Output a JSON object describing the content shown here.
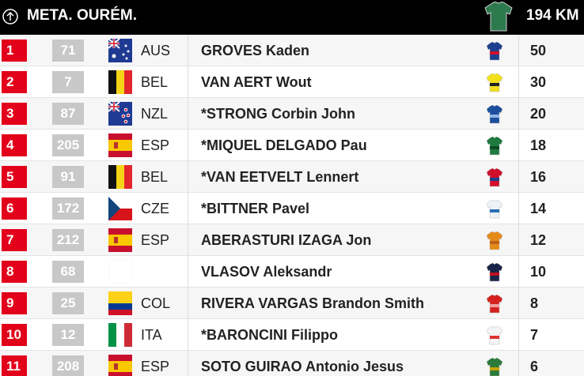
{
  "header": {
    "title": "META. OURÉM.",
    "distance": "194 KM"
  },
  "rows": [
    {
      "rank": "1",
      "bib": "71",
      "country": "AUS",
      "name": "GROVES Kaden",
      "points": "50"
    },
    {
      "rank": "2",
      "bib": "7",
      "country": "BEL",
      "name": "VAN AERT Wout",
      "points": "30"
    },
    {
      "rank": "3",
      "bib": "87",
      "country": "NZL",
      "name": "*STRONG Corbin John",
      "points": "20"
    },
    {
      "rank": "4",
      "bib": "205",
      "country": "ESP",
      "name": "*MIQUEL DELGADO Pau",
      "points": "18"
    },
    {
      "rank": "5",
      "bib": "91",
      "country": "BEL",
      "name": "*VAN EETVELT Lennert",
      "points": "16"
    },
    {
      "rank": "6",
      "bib": "172",
      "country": "CZE",
      "name": "*BITTNER Pavel",
      "points": "14"
    },
    {
      "rank": "7",
      "bib": "212",
      "country": "ESP",
      "name": "ABERASTURI IZAGA Jon",
      "points": "12"
    },
    {
      "rank": "8",
      "bib": "68",
      "name": "VLASOV Aleksandr",
      "points": "10"
    },
    {
      "rank": "9",
      "bib": "25",
      "country": "COL",
      "name": "RIVERA VARGAS Brandon Smith",
      "points": "8"
    },
    {
      "rank": "10",
      "bib": "12",
      "country": "ITA",
      "name": "*BARONCINI Filippo",
      "points": "7"
    },
    {
      "rank": "11",
      "bib": "208",
      "country": "ESP",
      "name": "SOTO GUIRAO Antonio Jesus",
      "points": "6"
    }
  ]
}
